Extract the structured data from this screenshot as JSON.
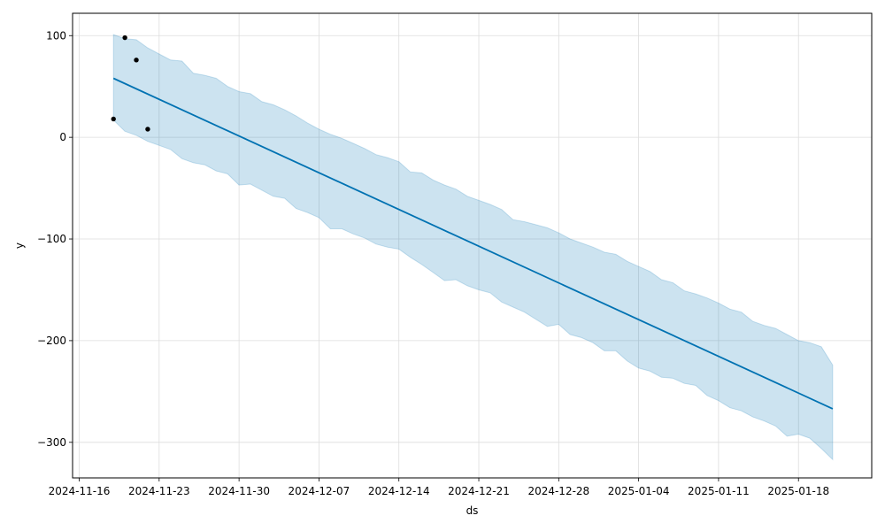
{
  "chart_data": {
    "type": "line",
    "title": "",
    "xlabel": "ds",
    "ylabel": "y",
    "x_type": "date",
    "xlim": [
      "2024-11-15T10:00",
      "2025-01-24T10:00"
    ],
    "ylim": [
      -335,
      122
    ],
    "x_ticks": [
      "2024-11-16",
      "2024-11-23",
      "2024-11-30",
      "2024-12-07",
      "2024-12-14",
      "2024-12-21",
      "2024-12-28",
      "2025-01-04",
      "2025-01-11",
      "2025-01-18"
    ],
    "y_ticks": [
      100,
      0,
      -100,
      -200,
      -300
    ],
    "grid": true,
    "legend": "none",
    "colors": {
      "forecast_line": "#0072b2",
      "uncertainty_fill": "#0072b2",
      "observations": "#000000",
      "grid": "#dddddd"
    },
    "series": [
      {
        "kind": "points",
        "x": [
          "2024-11-19",
          "2024-11-20",
          "2024-11-21",
          "2024-11-22"
        ],
        "y": [
          18,
          98,
          76,
          8
        ]
      },
      {
        "kind": "line",
        "x": [
          "2024-11-19",
          "2025-01-21"
        ],
        "y": [
          58,
          -267
        ]
      },
      {
        "kind": "band",
        "x": [
          "2024-11-19",
          "2024-11-20",
          "2024-11-21",
          "2024-11-22",
          "2024-11-23",
          "2024-11-24",
          "2024-11-25",
          "2024-11-26",
          "2024-11-27",
          "2024-11-28",
          "2024-11-29",
          "2024-11-30",
          "2024-12-01",
          "2024-12-02",
          "2024-12-03",
          "2024-12-04",
          "2024-12-05",
          "2024-12-06",
          "2024-12-07",
          "2024-12-08",
          "2024-12-09",
          "2024-12-10",
          "2024-12-11",
          "2024-12-12",
          "2024-12-13",
          "2024-12-14",
          "2024-12-15",
          "2024-12-16",
          "2024-12-17",
          "2024-12-18",
          "2024-12-19",
          "2024-12-20",
          "2024-12-21",
          "2024-12-22",
          "2024-12-23",
          "2024-12-24",
          "2024-12-25",
          "2024-12-26",
          "2024-12-27",
          "2024-12-28",
          "2024-12-29",
          "2024-12-30",
          "2024-12-31",
          "2025-01-01",
          "2025-01-02",
          "2025-01-03",
          "2025-01-04",
          "2025-01-05",
          "2025-01-06",
          "2025-01-07",
          "2025-01-08",
          "2025-01-09",
          "2025-01-10",
          "2025-01-11",
          "2025-01-12",
          "2025-01-13",
          "2025-01-14",
          "2025-01-15",
          "2025-01-16",
          "2025-01-17",
          "2025-01-18",
          "2025-01-19",
          "2025-01-20",
          "2025-01-21"
        ],
        "upper": [
          101,
          97,
          96,
          88,
          82,
          76,
          75,
          63,
          61,
          58,
          50,
          45,
          43,
          35,
          32,
          27,
          21,
          14,
          8,
          3,
          -1,
          -6,
          -11,
          -17,
          -20,
          -24,
          -34,
          -35,
          -42,
          -47,
          -51,
          -58,
          -62,
          -66,
          -71,
          -81,
          -83,
          -86,
          -89,
          -94,
          -100,
          -104,
          -108,
          -113,
          -115,
          -122,
          -127,
          -132,
          -140,
          -143,
          -151,
          -154,
          -158,
          -163,
          -169,
          -172,
          -181,
          -185,
          -188,
          -194,
          -200,
          -202,
          -206,
          -224
        ],
        "lower": [
          17,
          6,
          2,
          -4,
          -8,
          -12,
          -21,
          -25,
          -27,
          -33,
          -36,
          -47,
          -46,
          -52,
          -58,
          -60,
          -70,
          -74,
          -79,
          -90,
          -90,
          -95,
          -99,
          -105,
          -108,
          -110,
          -118,
          -125,
          -133,
          -141,
          -140,
          -146,
          -150,
          -153,
          -162,
          -167,
          -172,
          -179,
          -186,
          -184,
          -194,
          -197,
          -202,
          -210,
          -210,
          -220,
          -227,
          -230,
          -236,
          -237,
          -242,
          -244,
          -254,
          -259,
          -266,
          -269,
          -275,
          -279,
          -284,
          -294,
          -292,
          -296,
          -306,
          -317
        ]
      }
    ]
  }
}
